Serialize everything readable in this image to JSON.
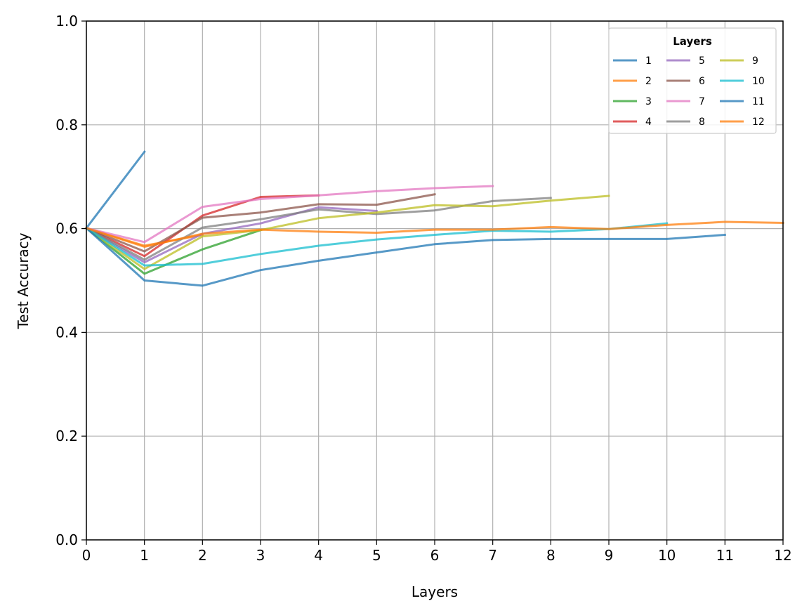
{
  "chart_data": {
    "type": "line",
    "xlabel": "Layers",
    "ylabel": "Test Accuracy",
    "xlim": [
      0,
      12
    ],
    "ylim": [
      0,
      1
    ],
    "xticks": [
      "0",
      "1",
      "2",
      "3",
      "4",
      "5",
      "6",
      "7",
      "8",
      "9",
      "10",
      "11",
      "12"
    ],
    "yticks": [
      "0.0",
      "0.2",
      "0.4",
      "0.6",
      "0.8",
      "1.0"
    ],
    "grid": true,
    "legend": {
      "title": "Layers",
      "placement": "top-right",
      "columns": 3
    },
    "series": [
      {
        "name": "1",
        "color": "#1f77b4",
        "x": [
          0,
          1
        ],
        "y": [
          0.601,
          0.748
        ]
      },
      {
        "name": "2",
        "color": "#ff7f0e",
        "x": [
          0,
          1,
          2
        ],
        "y": [
          0.601,
          0.567,
          0.588
        ]
      },
      {
        "name": "3",
        "color": "#2ca02c",
        "x": [
          0,
          1,
          2,
          3
        ],
        "y": [
          0.601,
          0.513,
          0.56,
          0.597
        ]
      },
      {
        "name": "4",
        "color": "#d62728",
        "x": [
          0,
          1,
          2,
          3,
          4
        ],
        "y": [
          0.601,
          0.547,
          0.625,
          0.661,
          0.664
        ]
      },
      {
        "name": "5",
        "color": "#9467bd",
        "x": [
          0,
          1,
          2,
          3,
          4,
          5
        ],
        "y": [
          0.601,
          0.535,
          0.59,
          0.61,
          0.641,
          0.634
        ]
      },
      {
        "name": "6",
        "color": "#8c564b",
        "x": [
          0,
          1,
          2,
          3,
          4,
          5,
          6
        ],
        "y": [
          0.601,
          0.556,
          0.621,
          0.631,
          0.647,
          0.646,
          0.666
        ]
      },
      {
        "name": "7",
        "color": "#e377c2",
        "x": [
          0,
          1,
          2,
          3,
          4,
          5,
          6,
          7
        ],
        "y": [
          0.601,
          0.574,
          0.642,
          0.657,
          0.664,
          0.672,
          0.678,
          0.682
        ]
      },
      {
        "name": "8",
        "color": "#7f7f7f",
        "x": [
          0,
          1,
          2,
          3,
          4,
          5,
          6,
          7,
          8
        ],
        "y": [
          0.601,
          0.54,
          0.602,
          0.618,
          0.637,
          0.628,
          0.635,
          0.653,
          0.659
        ]
      },
      {
        "name": "9",
        "color": "#bcbd22",
        "x": [
          0,
          1,
          2,
          3,
          4,
          5,
          6,
          7,
          8,
          9
        ],
        "y": [
          0.601,
          0.522,
          0.585,
          0.597,
          0.62,
          0.631,
          0.645,
          0.643,
          0.654,
          0.663
        ]
      },
      {
        "name": "10",
        "color": "#17becf",
        "x": [
          0,
          1,
          2,
          3,
          4,
          5,
          6,
          7,
          8,
          9,
          10
        ],
        "y": [
          0.601,
          0.529,
          0.532,
          0.551,
          0.567,
          0.579,
          0.588,
          0.596,
          0.594,
          0.599,
          0.61
        ]
      },
      {
        "name": "11",
        "color": "#1f77b4",
        "x": [
          0,
          1,
          2,
          3,
          4,
          5,
          6,
          7,
          8,
          9,
          10,
          11
        ],
        "y": [
          0.601,
          0.5,
          0.49,
          0.52,
          0.538,
          0.554,
          0.57,
          0.578,
          0.58,
          0.58,
          0.58,
          0.588
        ]
      },
      {
        "name": "12",
        "color": "#ff7f0e",
        "x": [
          0,
          1,
          2,
          3,
          4,
          5,
          6,
          7,
          8,
          9,
          10,
          11,
          12
        ],
        "y": [
          0.601,
          0.565,
          0.59,
          0.598,
          0.594,
          0.592,
          0.598,
          0.598,
          0.603,
          0.599,
          0.607,
          0.613,
          0.611
        ]
      }
    ]
  }
}
